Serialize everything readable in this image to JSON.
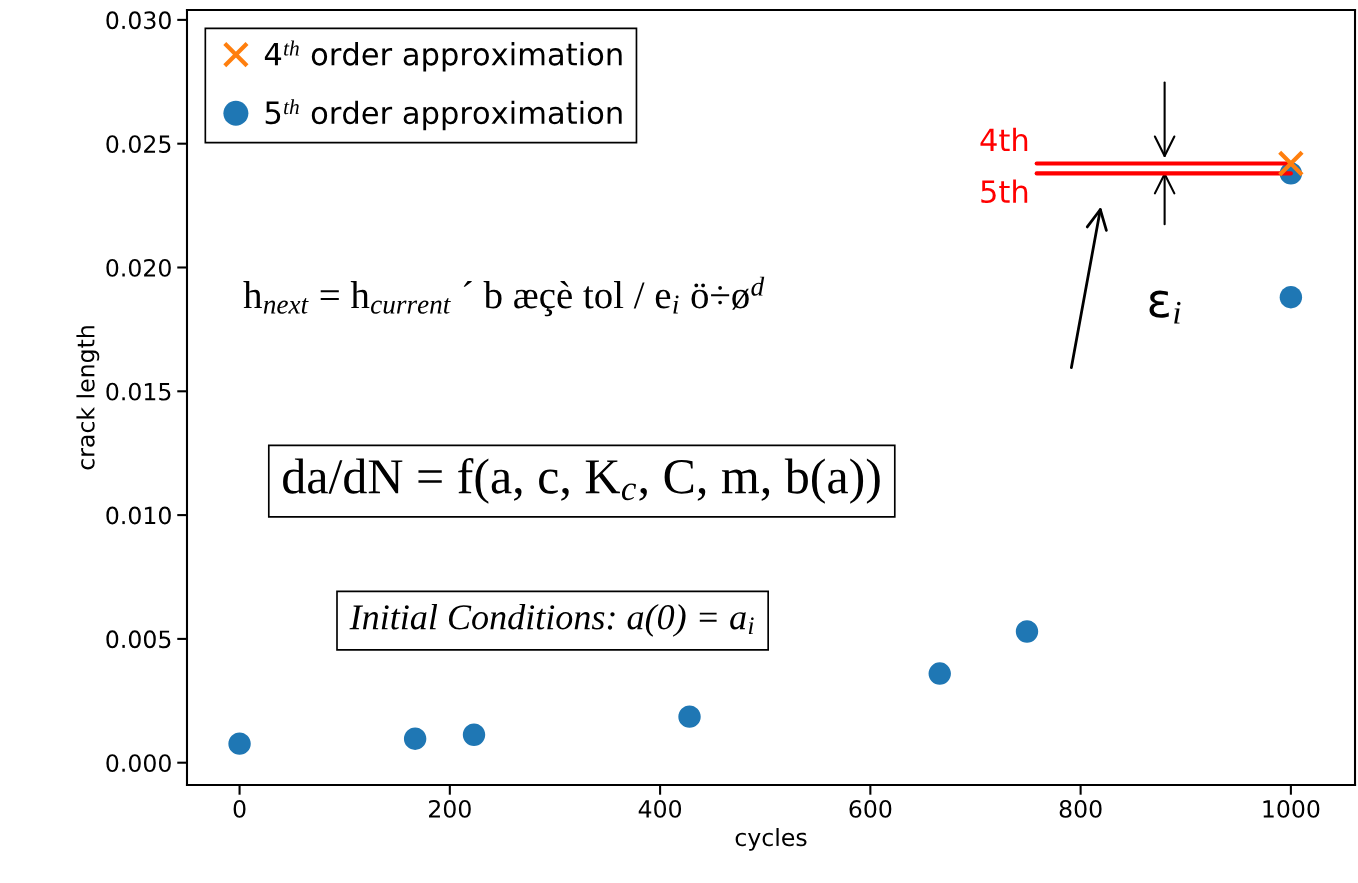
{
  "chart_data": {
    "type": "scatter",
    "xlabel": "cycles",
    "ylabel": "crack length",
    "xlim": [
      -50,
      1061
    ],
    "ylim": [
      -0.0009,
      0.0304
    ],
    "xticks": [
      0,
      200,
      400,
      600,
      800,
      1000
    ],
    "yticks": [
      {
        "value": 0,
        "label": "0.000"
      },
      {
        "value": 0.005,
        "label": "0.005"
      },
      {
        "value": 0.01,
        "label": "0.010"
      },
      {
        "value": 0.015,
        "label": "0.015"
      },
      {
        "value": 0.02,
        "label": "0.020"
      },
      {
        "value": 0.025,
        "label": "0.025"
      },
      {
        "value": 0.03,
        "label": "0.030"
      }
    ],
    "series": [
      {
        "name": "4$^{th}$ order approximation",
        "color": "#ff7f0e",
        "marker": "cross",
        "x": [
          1000
        ],
        "values": [
          0.0242
        ]
      },
      {
        "name": "5$^{th}$ order approximation",
        "color": "#1f77b4",
        "marker": "circle",
        "x": [
          0,
          167,
          223,
          428,
          666,
          749,
          1000,
          1000
        ],
        "values": [
          0.00077,
          0.00097,
          0.00113,
          0.00186,
          0.0036,
          0.0053,
          0.0238,
          0.0188
        ]
      }
    ],
    "legend": "top left",
    "grid": false,
    "annotations": [
      "h$_{next}$ = h$_{current}$ ´ b æçè tol / e$_{i}$ ö÷ø$^{d}$",
      "da/dN = f(a, c, K$_{c}$, C, m, b(a))",
      "Initial Conditions: a(0) = a$_{i}$",
      {
        "text": "4th",
        "x": 1000,
        "y": 0.0242
      },
      {
        "text": "5th",
        "x": 1000,
        "y": 0.0238
      },
      "ε$_{i}$"
    ]
  }
}
